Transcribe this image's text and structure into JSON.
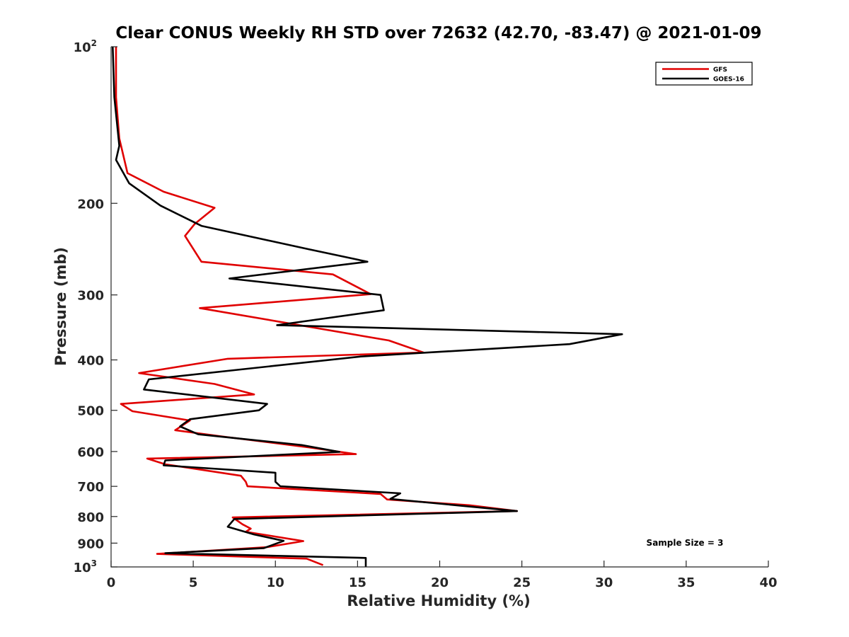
{
  "chart_data": {
    "type": "line",
    "title": "Clear CONUS Weekly RH STD over 72632 (42.70, -83.47) @ 2021-01-09",
    "xlabel": "Relative Humidity (%)",
    "ylabel": "Pressure (mb)",
    "xlim": [
      0,
      40
    ],
    "ylim": [
      100,
      1000
    ],
    "y_scale": "log",
    "y_reversed": true,
    "x_ticks": [
      0,
      5,
      10,
      15,
      20,
      25,
      30,
      35,
      40
    ],
    "y_ticks": [
      {
        "value": 100,
        "label": "10",
        "exp": "2"
      },
      {
        "value": 200,
        "label": "200"
      },
      {
        "value": 300,
        "label": "300"
      },
      {
        "value": 400,
        "label": "400"
      },
      {
        "value": 500,
        "label": "500"
      },
      {
        "value": 600,
        "label": "600"
      },
      {
        "value": 700,
        "label": "700"
      },
      {
        "value": 800,
        "label": "800"
      },
      {
        "value": 900,
        "label": "900"
      },
      {
        "value": 1000,
        "label": "10",
        "exp": "3"
      }
    ],
    "grid": false,
    "legend_position": "top-right",
    "annotation": "Sample Size = 3",
    "series": [
      {
        "name": "GFS",
        "color": "#e00000",
        "points": [
          [
            0.3,
            100
          ],
          [
            0.3,
            125
          ],
          [
            0.5,
            150
          ],
          [
            1.0,
            175
          ],
          [
            3.2,
            190
          ],
          [
            6.3,
            204
          ],
          [
            5.1,
            219
          ],
          [
            4.5,
            231
          ],
          [
            5.5,
            259
          ],
          [
            13.5,
            274
          ],
          [
            15.8,
            299
          ],
          [
            5.4,
            318
          ],
          [
            16.9,
            367
          ],
          [
            19.0,
            387
          ],
          [
            7.1,
            398
          ],
          [
            1.7,
            424
          ],
          [
            6.3,
            445
          ],
          [
            8.7,
            466
          ],
          [
            0.6,
            486
          ],
          [
            1.3,
            502
          ],
          [
            4.8,
            523
          ],
          [
            3.9,
            546
          ],
          [
            6.7,
            561
          ],
          [
            12.0,
            589
          ],
          [
            14.9,
            607
          ],
          [
            2.2,
            619
          ],
          [
            3.3,
            635
          ],
          [
            7.9,
            668
          ],
          [
            8.2,
            686
          ],
          [
            8.3,
            700
          ],
          [
            16.4,
            724
          ],
          [
            16.8,
            742
          ],
          [
            21.8,
            761
          ],
          [
            24.7,
            781
          ],
          [
            7.4,
            803
          ],
          [
            8.0,
            828
          ],
          [
            8.5,
            844
          ],
          [
            8.2,
            856
          ],
          [
            11.7,
            892
          ],
          [
            9.5,
            916
          ],
          [
            2.8,
            944
          ],
          [
            11.9,
            964
          ],
          [
            12.9,
            992
          ]
        ]
      },
      {
        "name": "GOES-16",
        "color": "#000000",
        "points": [
          [
            0.1,
            100
          ],
          [
            0.2,
            125
          ],
          [
            0.5,
            155
          ],
          [
            0.3,
            165
          ],
          [
            1.1,
            183
          ],
          [
            3.0,
            202
          ],
          [
            5.5,
            221
          ],
          [
            12.0,
            245
          ],
          [
            15.6,
            259
          ],
          [
            7.2,
            279
          ],
          [
            16.4,
            300
          ],
          [
            16.6,
            321
          ],
          [
            10.1,
            343
          ],
          [
            31.1,
            357
          ],
          [
            27.9,
            373
          ],
          [
            15.2,
            394
          ],
          [
            2.3,
            436
          ],
          [
            2.0,
            456
          ],
          [
            9.5,
            486
          ],
          [
            9.0,
            500
          ],
          [
            4.8,
            520
          ],
          [
            4.2,
            537
          ],
          [
            5.3,
            556
          ],
          [
            11.6,
            583
          ],
          [
            13.9,
            601
          ],
          [
            3.3,
            624
          ],
          [
            3.2,
            638
          ],
          [
            10.0,
            659
          ],
          [
            10.0,
            686
          ],
          [
            10.3,
            700
          ],
          [
            17.6,
            722
          ],
          [
            17.0,
            740
          ],
          [
            24.7,
            781
          ],
          [
            7.5,
            809
          ],
          [
            7.1,
            837
          ],
          [
            8.7,
            866
          ],
          [
            10.5,
            891
          ],
          [
            9.3,
            920
          ],
          [
            3.3,
            941
          ],
          [
            15.5,
            961
          ],
          [
            15.5,
            1000
          ]
        ]
      }
    ]
  }
}
